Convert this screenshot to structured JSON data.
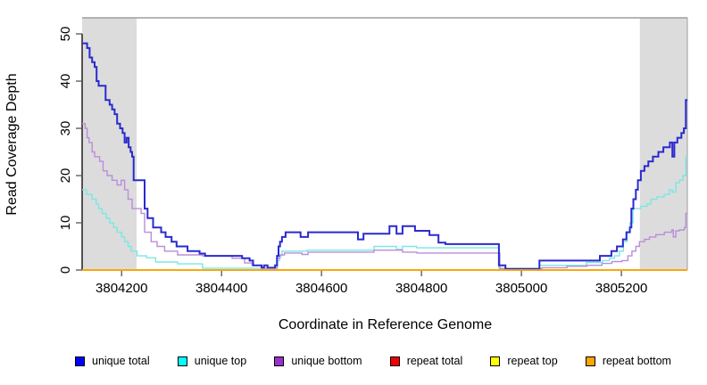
{
  "chart_data": {
    "type": "line",
    "title": "",
    "xlabel": "Coordinate in Reference Genome",
    "ylabel": "Read Coverage Depth",
    "xlim": [
      3804121,
      3805332
    ],
    "ylim": [
      0,
      53.4
    ],
    "x_ticks": [
      3804200,
      3804400,
      3804600,
      3804800,
      3805000,
      3805200
    ],
    "y_ticks": [
      0,
      10,
      20,
      30,
      40,
      50
    ],
    "grid": false,
    "step": true,
    "legend_position": "bottom",
    "background_color": "#FFFFFF",
    "shaded_region_color": "#DCDCDC",
    "frame_color": "#9E9E9E",
    "axis_color": "#000000",
    "shaded_regions": [
      {
        "x0": 3804121,
        "x1": 3804230
      },
      {
        "x0": 3805237,
        "x1": 3805332
      }
    ],
    "series": [
      {
        "name": "unique total",
        "legend_color": "#0000F5",
        "line_color": "#2A2ACF",
        "line_width": 2,
        "points": [
          [
            3804121,
            48
          ],
          [
            3804131,
            47
          ],
          [
            3804136,
            45
          ],
          [
            3804141,
            44
          ],
          [
            3804146,
            43
          ],
          [
            3804150,
            40
          ],
          [
            3804154,
            39
          ],
          [
            3804168,
            36
          ],
          [
            3804176,
            35
          ],
          [
            3804181,
            34
          ],
          [
            3804186,
            33
          ],
          [
            3804191,
            31
          ],
          [
            3804197,
            30
          ],
          [
            3804202,
            29
          ],
          [
            3804206,
            27
          ],
          [
            3804210,
            28
          ],
          [
            3804214,
            26
          ],
          [
            3804218,
            25
          ],
          [
            3804221,
            24
          ],
          [
            3804224,
            19
          ],
          [
            3804246,
            13
          ],
          [
            3804252,
            11
          ],
          [
            3804263,
            9
          ],
          [
            3804279,
            8
          ],
          [
            3804288,
            7
          ],
          [
            3804300,
            6
          ],
          [
            3804310,
            5
          ],
          [
            3804332,
            4
          ],
          [
            3804356,
            3.5
          ],
          [
            3804367,
            3
          ],
          [
            3804441,
            2.5
          ],
          [
            3804456,
            2
          ],
          [
            3804463,
            1
          ],
          [
            3804480,
            0.5
          ],
          [
            3804485,
            1
          ],
          [
            3804492,
            0.5
          ],
          [
            3804507,
            1
          ],
          [
            3804511,
            3
          ],
          [
            3804514,
            5
          ],
          [
            3804517,
            6
          ],
          [
            3804521,
            7
          ],
          [
            3804528,
            8
          ],
          [
            3804558,
            7
          ],
          [
            3804573,
            8
          ],
          [
            3804673,
            6.5
          ],
          [
            3804684,
            7.7
          ],
          [
            3804736,
            9.3
          ],
          [
            3804750,
            7.7
          ],
          [
            3804762,
            9.3
          ],
          [
            3804787,
            8.3
          ],
          [
            3804816,
            7.4
          ],
          [
            3804834,
            5.8
          ],
          [
            3804848,
            5.5
          ],
          [
            3804955,
            1
          ],
          [
            3804968,
            0.2
          ],
          [
            3805036,
            2
          ],
          [
            3805157,
            3
          ],
          [
            3805180,
            4
          ],
          [
            3805191,
            5
          ],
          [
            3805203,
            6.5
          ],
          [
            3805210,
            8
          ],
          [
            3805217,
            9
          ],
          [
            3805220,
            13
          ],
          [
            3805224,
            15
          ],
          [
            3805229,
            17
          ],
          [
            3805233,
            19
          ],
          [
            3805239,
            21
          ],
          [
            3805246,
            22
          ],
          [
            3805254,
            23
          ],
          [
            3805263,
            24
          ],
          [
            3805274,
            25
          ],
          [
            3805284,
            26
          ],
          [
            3805297,
            27
          ],
          [
            3805302,
            24
          ],
          [
            3805306,
            27
          ],
          [
            3805312,
            28
          ],
          [
            3805320,
            29
          ],
          [
            3805325,
            30
          ],
          [
            3805329,
            36
          ]
        ]
      },
      {
        "name": "unique top",
        "legend_color": "#00FFFF",
        "line_color": "#79E8E3",
        "line_width": 1.4,
        "points": [
          [
            3804121,
            17
          ],
          [
            3804130,
            16
          ],
          [
            3804141,
            15
          ],
          [
            3804149,
            14
          ],
          [
            3804154,
            13
          ],
          [
            3804161,
            12
          ],
          [
            3804169,
            11
          ],
          [
            3804176,
            10
          ],
          [
            3804184,
            9
          ],
          [
            3804191,
            8
          ],
          [
            3804200,
            7
          ],
          [
            3804206,
            6
          ],
          [
            3804213,
            5
          ],
          [
            3804219,
            4
          ],
          [
            3804231,
            3
          ],
          [
            3804250,
            2.6
          ],
          [
            3804268,
            1.7
          ],
          [
            3804312,
            1.3
          ],
          [
            3804362,
            0.4
          ],
          [
            3804512,
            2
          ],
          [
            3804516,
            3
          ],
          [
            3804521,
            4
          ],
          [
            3804571,
            4.2
          ],
          [
            3804705,
            5
          ],
          [
            3804750,
            4.4
          ],
          [
            3804762,
            5
          ],
          [
            3804790,
            4.7
          ],
          [
            3804955,
            0.4
          ],
          [
            3805036,
            1
          ],
          [
            3805130,
            1.6
          ],
          [
            3805162,
            2
          ],
          [
            3805176,
            2.5
          ],
          [
            3805186,
            3
          ],
          [
            3805196,
            4
          ],
          [
            3805204,
            6
          ],
          [
            3805211,
            8
          ],
          [
            3805217,
            10
          ],
          [
            3805223,
            13
          ],
          [
            3805239,
            13.5
          ],
          [
            3805251,
            14
          ],
          [
            3805259,
            15
          ],
          [
            3805271,
            15.5
          ],
          [
            3805286,
            16
          ],
          [
            3805296,
            17
          ],
          [
            3805302,
            16.5
          ],
          [
            3805309,
            18.5
          ],
          [
            3805316,
            19
          ],
          [
            3805323,
            20
          ],
          [
            3805329,
            24
          ]
        ]
      },
      {
        "name": "unique bottom",
        "legend_color": "#9932CC",
        "line_color": "#BB8DDA",
        "line_width": 1.4,
        "points": [
          [
            3804121,
            31
          ],
          [
            3804127,
            30
          ],
          [
            3804131,
            28
          ],
          [
            3804135,
            27
          ],
          [
            3804141,
            25
          ],
          [
            3804146,
            24
          ],
          [
            3804156,
            23
          ],
          [
            3804163,
            21
          ],
          [
            3804171,
            20
          ],
          [
            3804181,
            19
          ],
          [
            3804191,
            18
          ],
          [
            3804199,
            19
          ],
          [
            3804206,
            17
          ],
          [
            3804213,
            15
          ],
          [
            3804221,
            13
          ],
          [
            3804239,
            12
          ],
          [
            3804246,
            8
          ],
          [
            3804259,
            6
          ],
          [
            3804271,
            5
          ],
          [
            3804286,
            4
          ],
          [
            3804312,
            3.2
          ],
          [
            3804362,
            3
          ],
          [
            3804421,
            2.5
          ],
          [
            3804446,
            1.5
          ],
          [
            3804461,
            1
          ],
          [
            3804481,
            0.4
          ],
          [
            3804511,
            2.5
          ],
          [
            3804517,
            3.2
          ],
          [
            3804526,
            3.6
          ],
          [
            3804561,
            3.3
          ],
          [
            3804573,
            3.8
          ],
          [
            3804705,
            4.2
          ],
          [
            3804762,
            3.8
          ],
          [
            3804791,
            3.6
          ],
          [
            3804957,
            0.3
          ],
          [
            3805041,
            0.5
          ],
          [
            3805091,
            0.8
          ],
          [
            3805131,
            1
          ],
          [
            3805161,
            1.4
          ],
          [
            3805181,
            1.8
          ],
          [
            3805201,
            2
          ],
          [
            3805213,
            3
          ],
          [
            3805221,
            4
          ],
          [
            3805229,
            5
          ],
          [
            3805236,
            6
          ],
          [
            3805246,
            6.5
          ],
          [
            3805256,
            7
          ],
          [
            3805269,
            7.5
          ],
          [
            3805286,
            8
          ],
          [
            3805301,
            8.5
          ],
          [
            3805304,
            7
          ],
          [
            3805309,
            8.3
          ],
          [
            3805316,
            8.5
          ],
          [
            3805326,
            9
          ],
          [
            3805329,
            12
          ]
        ]
      },
      {
        "name": "repeat total",
        "legend_color": "#EE0000",
        "line_color": "#EE0000",
        "line_width": 1.4,
        "points": [
          [
            3804121,
            0
          ]
        ]
      },
      {
        "name": "repeat top",
        "legend_color": "#FFFF00",
        "line_color": "#FFFF00",
        "line_width": 1.4,
        "points": [
          [
            3804121,
            0
          ]
        ]
      },
      {
        "name": "repeat bottom",
        "legend_color": "#FFA500",
        "line_color": "#FFA500",
        "line_width": 1.6,
        "points": [
          [
            3804121,
            0
          ]
        ]
      }
    ]
  }
}
